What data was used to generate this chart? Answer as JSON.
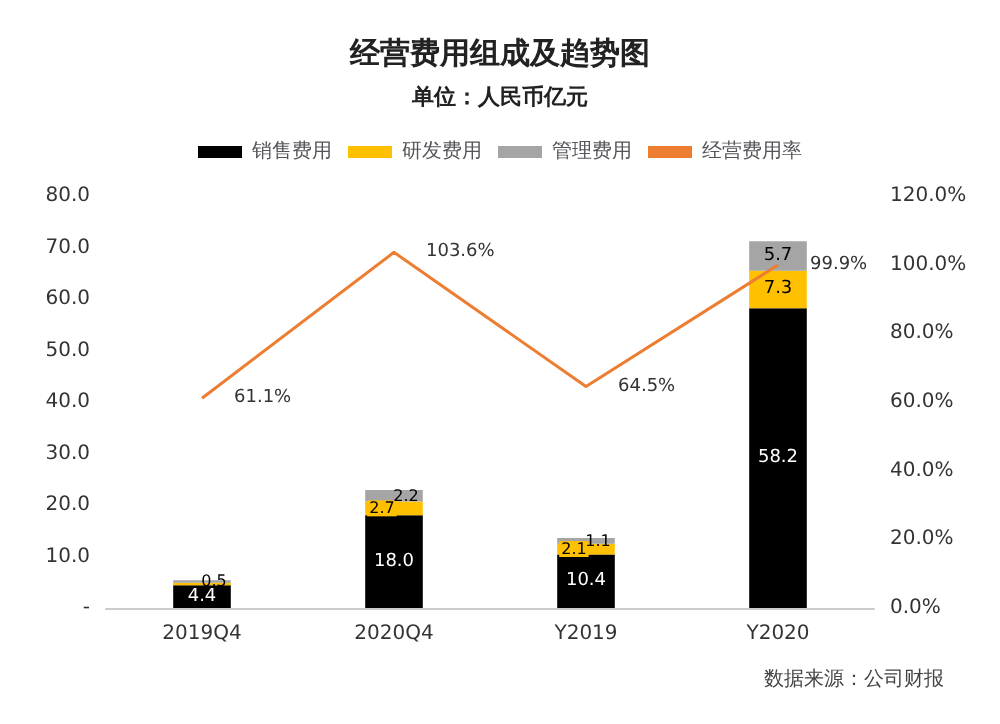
{
  "chart_data": {
    "type": "bar",
    "title": "经营费用组成及趋势图",
    "subtitle": "单位：人民币亿元",
    "annotations": [
      "数据来源：公司财报"
    ],
    "categories": [
      "2019Q4",
      "2020Q4",
      "Y2019",
      "Y2020"
    ],
    "stacked": true,
    "legend": "top",
    "grid": false,
    "ylim": [
      0,
      80
    ],
    "yticks": [
      {
        "value": 0,
        "label": "-"
      },
      {
        "value": 10,
        "label": "10.0"
      },
      {
        "value": 20,
        "label": "20.0"
      },
      {
        "value": 30,
        "label": "30.0"
      },
      {
        "value": 40,
        "label": "40.0"
      },
      {
        "value": 50,
        "label": "50.0"
      },
      {
        "value": 60,
        "label": "60.0"
      },
      {
        "value": 70,
        "label": "70.0"
      },
      {
        "value": 80,
        "label": "80.0"
      }
    ],
    "y2lim": [
      0,
      120
    ],
    "y2ticks": [
      {
        "value": 0,
        "label": "0.0%"
      },
      {
        "value": 20,
        "label": "20.0%"
      },
      {
        "value": 40,
        "label": "40.0%"
      },
      {
        "value": 60,
        "label": "60.0%"
      },
      {
        "value": 80,
        "label": "80.0%"
      },
      {
        "value": 100,
        "label": "100.0%"
      },
      {
        "value": 120,
        "label": "120.0%"
      }
    ],
    "series": [
      {
        "name": "销售费用",
        "color": "#000000",
        "values": [
          4.4,
          18.0,
          10.4,
          58.2
        ],
        "value_labels": [
          "4.4",
          "18.0",
          "10.4",
          "58.2"
        ]
      },
      {
        "name": "研发费用",
        "color": "#ffc000",
        "values": [
          0.5,
          2.7,
          2.1,
          7.3
        ],
        "value_labels": [
          null,
          "2.7",
          "2.1",
          "7.3"
        ]
      },
      {
        "name": "管理费用",
        "color": "#a5a5a5",
        "values": [
          0.5,
          2.2,
          1.1,
          5.7
        ],
        "value_labels": [
          "0.5",
          "2.2",
          "1.1",
          "5.7"
        ]
      },
      {
        "name": "经营费用率",
        "type": "line",
        "axis": "y2",
        "color": "#ed7d31",
        "marker": "none",
        "line_style": "solid",
        "values": [
          61.1,
          103.6,
          64.5,
          99.9
        ],
        "value_labels": [
          "61.1%",
          "103.6%",
          "64.5%",
          "99.9%"
        ]
      }
    ]
  }
}
